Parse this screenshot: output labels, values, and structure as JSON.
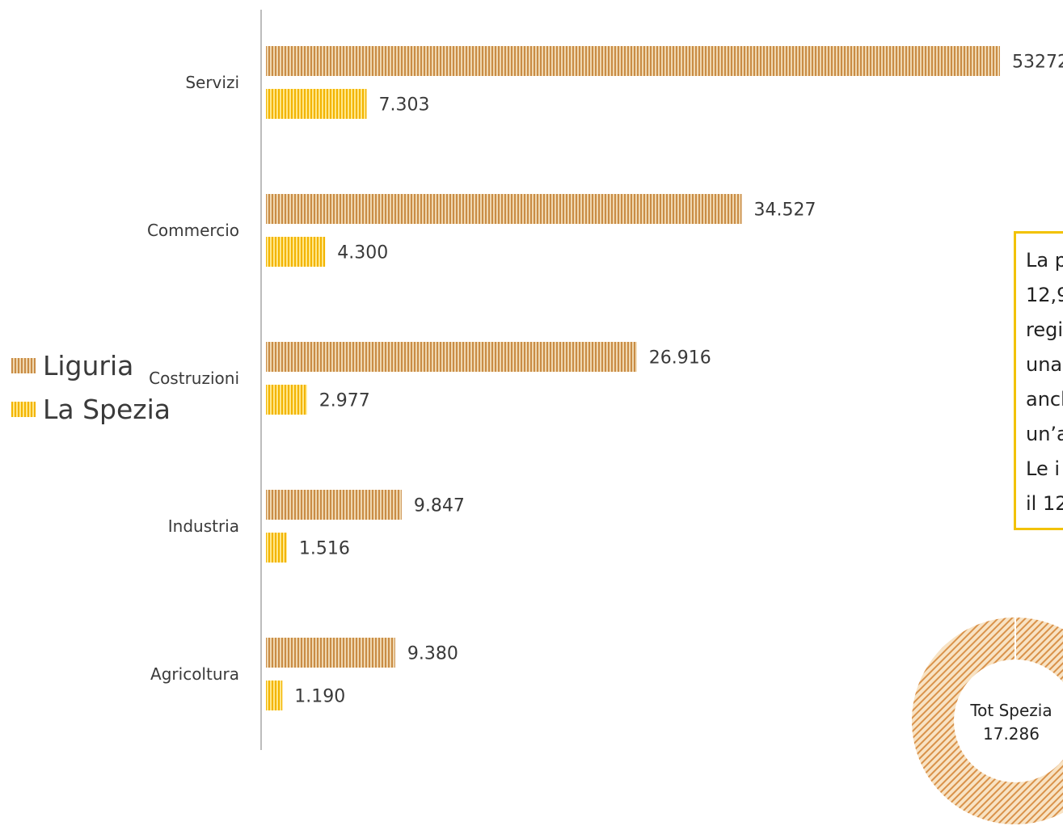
{
  "chart_data": {
    "type": "bar",
    "orientation": "horizontal",
    "categories": [
      "Servizi",
      "Commercio",
      "Costruzioni",
      "Industria",
      "Agricoltura"
    ],
    "series": [
      {
        "name": "Liguria",
        "values": [
          53272,
          34527,
          26916,
          9847,
          9380
        ],
        "labels": [
          "53272",
          "34.527",
          "26.916",
          "9.847",
          "9.380"
        ],
        "color": "#c98c45"
      },
      {
        "name": "La Spezia",
        "values": [
          7303,
          4300,
          2977,
          1516,
          1190
        ],
        "labels": [
          "7.303",
          "4.300",
          "2.977",
          "1.516",
          "1.190"
        ],
        "color": "#f3b400"
      }
    ],
    "xlim": [
      0,
      53272
    ],
    "legend": "left",
    "grid": false
  },
  "legend": {
    "liguria": "Liguria",
    "spezia": "La Spezia"
  },
  "note": {
    "lines": [
      "La p",
      "12,9",
      "regio",
      "una",
      "anch",
      "un’a",
      "Le i",
      "il 12"
    ]
  },
  "donut": {
    "label": "Tot Spezia",
    "value": "17.286"
  },
  "colors": {
    "liguria": "#c98c45",
    "spezia": "#f3b400",
    "axis": "#bdbdbd",
    "note_border": "#f2c200"
  }
}
